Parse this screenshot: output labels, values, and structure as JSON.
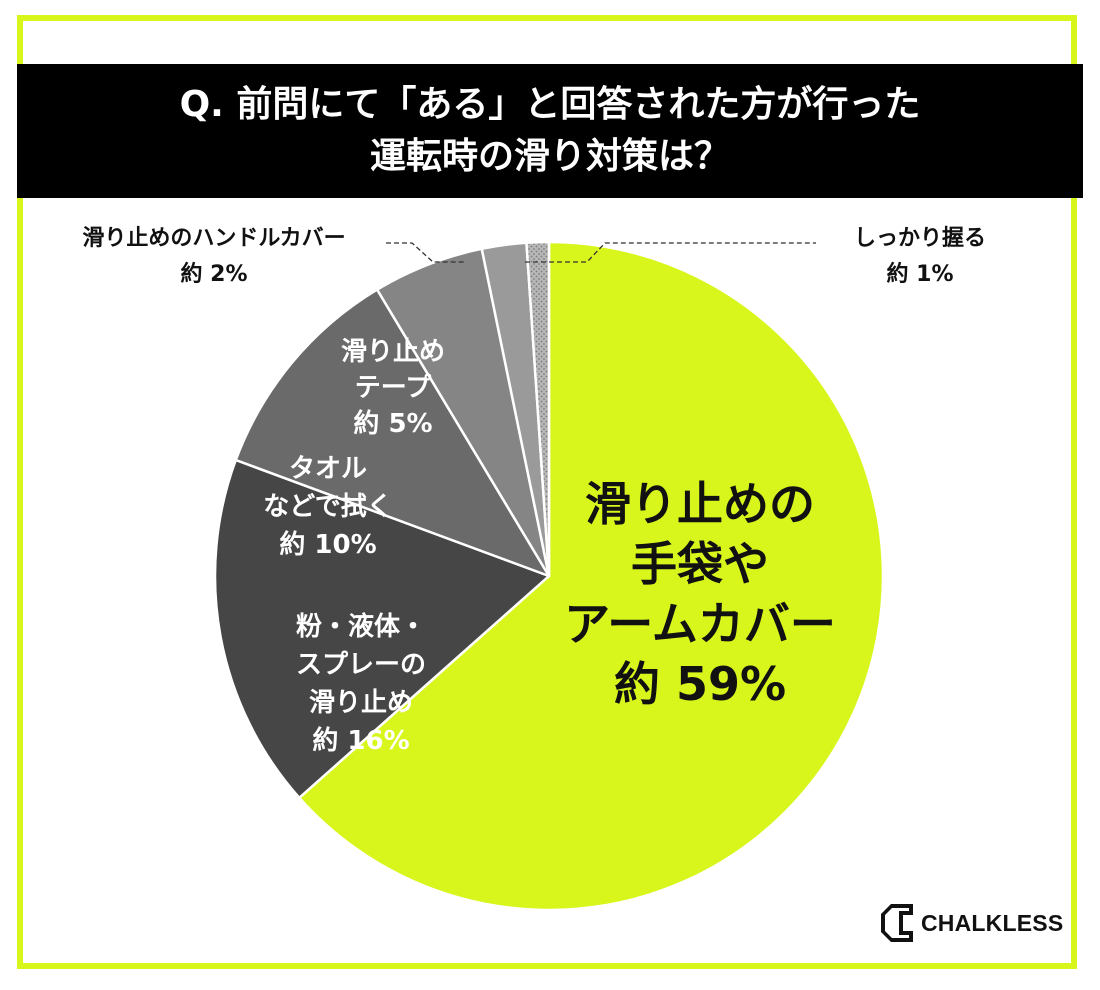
{
  "title": {
    "line1": "Q. 前問にて「ある」と回答された方が行った",
    "line2": "運転時の滑り対策は？"
  },
  "brand": {
    "name": "CHALKLESS"
  },
  "colors": {
    "accent": "#d8f51c",
    "title_bg": "#000000"
  },
  "chart_data": {
    "type": "pie",
    "start_angle": 0,
    "direction": "clockwise",
    "slices": [
      {
        "label_lines": [
          "滑り止めの",
          "手袋や",
          "アームカバー"
        ],
        "value_text": "約 59%",
        "value": 59,
        "color": "#d8f51c",
        "text_color": "#111111",
        "style": "solid"
      },
      {
        "label_lines": [
          "粉・液体・",
          "スプレーの",
          "滑り止め"
        ],
        "value_text": "約 16%",
        "value": 16,
        "color": "#464646",
        "text_color": "#ffffff",
        "style": "solid"
      },
      {
        "label_lines": [
          "タオル",
          "などで拭く"
        ],
        "value_text": "約 10%",
        "value": 10,
        "color": "#6a6a6a",
        "text_color": "#ffffff",
        "style": "solid"
      },
      {
        "label_lines": [
          "滑り止め",
          "テープ"
        ],
        "value_text": "約 5%",
        "value": 5,
        "color": "#858585",
        "text_color": "#ffffff",
        "style": "solid"
      },
      {
        "label_lines": [
          "滑り止めのハンドルカバー"
        ],
        "value_text": "約 2%",
        "value": 2,
        "color": "#9a9a9a",
        "text_color": "#111111",
        "style": "solid",
        "callout": "left"
      },
      {
        "label_lines": [
          "しっかり握る"
        ],
        "value_text": "約 1%",
        "value": 1,
        "color": "#b9b9b9",
        "text_color": "#111111",
        "style": "dotted",
        "callout": "right"
      }
    ]
  }
}
